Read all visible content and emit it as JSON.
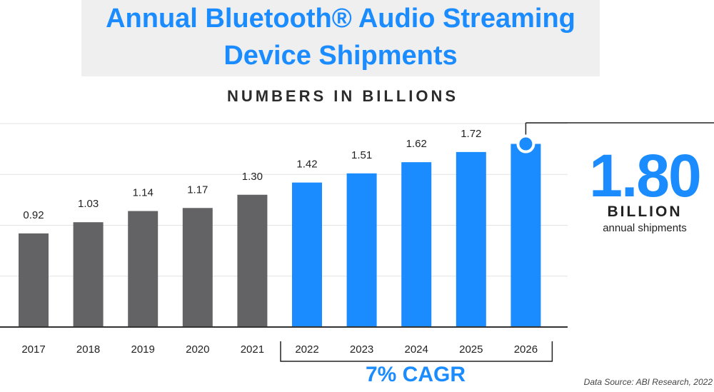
{
  "title": {
    "line1": "Annual Bluetooth® Audio Streaming",
    "line2": "Device Shipments"
  },
  "subtitle": "NUMBERS IN BILLIONS",
  "callout": {
    "value": "1.80",
    "unit": "BILLION",
    "description": "annual shipments"
  },
  "cagr_label": "7% CAGR",
  "source": "Data Source: ABI Research, 2022",
  "colors": {
    "historical": "#636366",
    "forecast": "#1a8cff",
    "grid": "#e3e3e3",
    "axis": "#333333"
  },
  "chart_data": {
    "type": "bar",
    "title": "Annual Bluetooth® Audio Streaming Device Shipments",
    "subtitle": "NUMBERS IN BILLIONS",
    "categories": [
      "2017",
      "2018",
      "2019",
      "2020",
      "2021",
      "2022",
      "2023",
      "2024",
      "2025",
      "2026"
    ],
    "values": [
      0.92,
      1.03,
      1.14,
      1.17,
      1.3,
      1.42,
      1.51,
      1.62,
      1.72,
      1.8
    ],
    "value_labels": [
      "0.92",
      "1.03",
      "1.14",
      "1.17",
      "1.30",
      "1.42",
      "1.51",
      "1.62",
      "1.72",
      ""
    ],
    "series_kind": [
      "historical",
      "historical",
      "historical",
      "historical",
      "historical",
      "forecast",
      "forecast",
      "forecast",
      "forecast",
      "forecast"
    ],
    "ylim": [
      0,
      2.0
    ],
    "grid": true,
    "legend": "none",
    "annotations": [
      "1.80 BILLION annual shipments",
      "7% CAGR (2022–2026)"
    ]
  }
}
